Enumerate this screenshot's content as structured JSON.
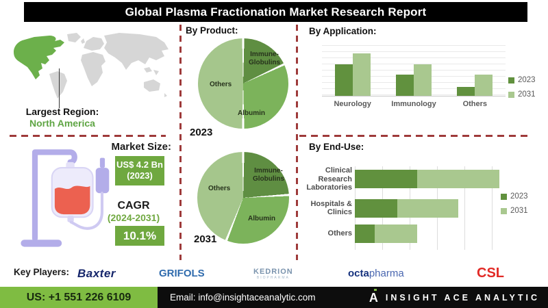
{
  "title": "Global Plasma Fractionation Market Research Report",
  "map": {
    "largest_region_label": "Largest Region:",
    "largest_region_value": "North America",
    "highlight_color": "#6cb04b",
    "land_color": "#d6d6d6"
  },
  "market": {
    "size_label": "Market Size:",
    "size_value": "US$ 4.2 Bn",
    "size_year": "(2023)",
    "cagr_label": "CAGR",
    "cagr_period": "(2024-2031)",
    "cagr_value": "10.1%",
    "badge_color": "#6fa83f"
  },
  "colors": {
    "accent_dark_green": "#61913e",
    "accent_light_green": "#a9c88f",
    "divider_red": "#9e3a3a",
    "footer_green": "#7fbc42",
    "footer_black": "#0d0d0d"
  },
  "key_players": {
    "label": "Key Players:",
    "baxter": "Baxter",
    "grifols": "GRIFOLS",
    "kedrion": "KEDRION",
    "kedrion_sub": "BIOPHARMA",
    "octa_bold": "octa",
    "octa_light": "pharma",
    "csl": "CSL"
  },
  "footer": {
    "phone": "US: +1 551 226 6109",
    "email": "Email: info@insightaceanalytic.com",
    "brand": "INSIGHT ACE ANALYTIC"
  },
  "chart_data": [
    {
      "id": "by_product_2023",
      "type": "pie",
      "title": "By Product:",
      "year": "2023",
      "slices": [
        {
          "label": "Immune-Globulins",
          "value": 18,
          "color": "#5f8e42"
        },
        {
          "label": "Albumin",
          "value": 32,
          "color": "#7cb35b"
        },
        {
          "label": "Others",
          "value": 50,
          "color": "#a5c68c"
        }
      ]
    },
    {
      "id": "by_product_2031",
      "type": "pie",
      "title": "By Product:",
      "year": "2031",
      "slices": [
        {
          "label": "Immune-Globulins",
          "value": 24,
          "color": "#5f8e42"
        },
        {
          "label": "Albumin",
          "value": 32,
          "color": "#7cb35b"
        },
        {
          "label": "Others",
          "value": 44,
          "color": "#a5c68c"
        }
      ]
    },
    {
      "id": "by_application",
      "type": "bar",
      "title": "By Application:",
      "categories": [
        "Neurology",
        "Immunology",
        "Others"
      ],
      "series": [
        {
          "name": "2023",
          "color": "#61913e",
          "values": [
            62,
            42,
            18
          ]
        },
        {
          "name": "2031",
          "color": "#a9c88f",
          "values": [
            84,
            62,
            42
          ]
        }
      ],
      "ylim": [
        0,
        100
      ],
      "grid": true,
      "legend_position": "right",
      "note": "values are relative heights, axis unlabeled in source"
    },
    {
      "id": "by_end_use",
      "type": "bar",
      "orientation": "horizontal",
      "stacked": true,
      "title": "By End-Use:",
      "categories": [
        "Clinical Research Laboratories",
        "Hospitals & Clinics",
        "Others"
      ],
      "series": [
        {
          "name": "2023",
          "color": "#61913e",
          "values": [
            38,
            26,
            12
          ]
        },
        {
          "name": "2031",
          "color": "#a9c88f",
          "values": [
            50,
            37,
            26
          ]
        }
      ],
      "xlim": [
        0,
        100
      ],
      "grid": true,
      "legend_position": "right",
      "note": "values are relative lengths, axis unlabeled in source"
    }
  ]
}
